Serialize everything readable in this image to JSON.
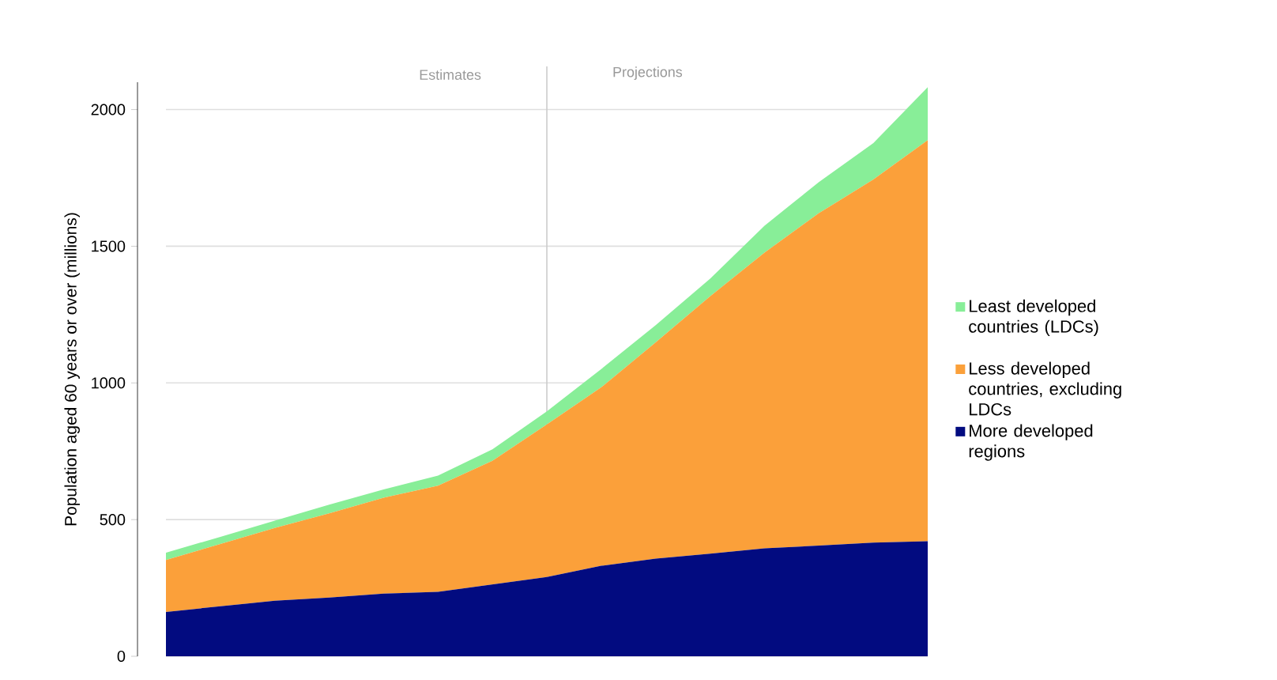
{
  "chart_data": {
    "type": "area",
    "stacked": true,
    "ylabel": "Population aged 60 years or over (millions)",
    "categories": [
      null,
      null,
      null,
      null,
      null,
      null,
      null,
      null,
      null,
      null,
      null,
      null,
      null,
      null,
      null
    ],
    "series": [
      {
        "name": "More developed regions",
        "color": "#020b80",
        "values": [
          162,
          183,
          203,
          215,
          229,
          236,
          263,
          290,
          331,
          357,
          375,
          395,
          405,
          416,
          421
        ]
      },
      {
        "name": "Less developed countries, excluding LDCs",
        "color": "#fba03a",
        "values": [
          190,
          228,
          266,
          308,
          351,
          388,
          452,
          558,
          653,
          791,
          942,
          1082,
          1216,
          1328,
          1467
        ]
      },
      {
        "name": "Least developed countries (LDCs)",
        "color": "#88ee98",
        "values": [
          27,
          26,
          27,
          32,
          30,
          37,
          42,
          48,
          67,
          63,
          64,
          98,
          114,
          133,
          194
        ]
      }
    ],
    "ylim": [
      0,
      2100
    ],
    "yticks": [
      0,
      500,
      1000,
      1500,
      2000
    ],
    "grid": "y",
    "legend": "right",
    "annotations": [
      "Estimates",
      "Projections"
    ]
  }
}
